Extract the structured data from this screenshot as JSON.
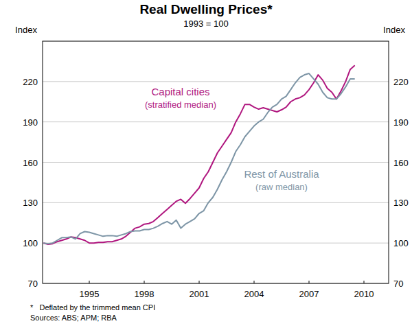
{
  "chart_data": {
    "type": "line",
    "title": "Real Dwelling Prices*",
    "subtitle": "1993 = 100",
    "ylabel": "Index",
    "notes": [
      "*   Deflated by the trimmed mean CPI",
      "Sources: ABS; APM; RBA"
    ],
    "x": [
      1993,
      1993.25,
      1993.5,
      1993.75,
      1994,
      1994.25,
      1994.5,
      1994.75,
      1995,
      1995.25,
      1995.5,
      1995.75,
      1996,
      1996.25,
      1996.5,
      1996.75,
      1997,
      1997.25,
      1997.5,
      1997.75,
      1998,
      1998.25,
      1998.5,
      1998.75,
      1999,
      1999.25,
      1999.5,
      1999.75,
      2000,
      2000.25,
      2000.5,
      2000.75,
      2001,
      2001.25,
      2001.5,
      2001.75,
      2002,
      2002.25,
      2002.5,
      2002.75,
      2003,
      2003.25,
      2003.5,
      2003.75,
      2004,
      2004.25,
      2004.5,
      2004.75,
      2005,
      2005.25,
      2005.5,
      2005.75,
      2006,
      2006.25,
      2006.5,
      2006.75,
      2007,
      2007.25,
      2007.5,
      2007.75,
      2008,
      2008.25,
      2008.5,
      2008.75,
      2009,
      2009.25,
      2009.5,
      2009.75,
      2010
    ],
    "series": [
      {
        "name": "Capital cities",
        "description": "(stratified median)",
        "color": "#b0177f",
        "values": [
          100,
          99,
          99.5,
          101,
          102,
          103,
          104.5,
          104,
          103,
          102,
          100,
          100,
          100.5,
          100.5,
          101,
          101,
          102,
          103,
          105,
          108,
          111,
          112,
          114,
          114.5,
          116,
          119,
          122,
          125,
          128,
          131,
          132.5,
          129.5,
          133,
          137,
          141,
          148,
          153,
          160,
          167,
          172,
          177,
          182,
          190,
          196,
          203,
          203,
          201,
          199.5,
          200.5,
          199.5,
          198.5,
          197.5,
          199,
          201,
          205,
          207,
          208,
          210,
          214,
          219,
          225,
          221,
          215,
          212,
          207,
          213,
          220,
          229,
          232
        ]
      },
      {
        "name": "Rest of Australia",
        "description": "(raw median)",
        "color": "#7d95a6",
        "values": [
          100,
          99.5,
          100,
          102,
          104,
          104,
          104.5,
          103,
          107,
          108.5,
          108,
          107,
          106,
          105,
          105.5,
          105.5,
          105,
          106,
          107,
          108.5,
          109,
          109,
          110,
          110,
          111,
          112.5,
          114.5,
          116,
          114,
          117,
          111,
          114,
          116,
          118,
          122,
          124,
          130,
          134,
          140,
          147,
          153,
          160,
          168,
          173,
          179,
          183,
          187,
          190,
          192,
          197,
          201,
          203,
          207,
          209,
          214,
          219,
          223,
          225,
          226,
          222,
          218,
          212,
          208,
          207,
          207,
          211,
          216,
          222,
          222
        ]
      }
    ],
    "xlim": [
      1992.95,
      2011.85
    ],
    "xticks": [
      {
        "value": 1995.5,
        "label": "1995"
      },
      {
        "value": 1998.5,
        "label": "1998"
      },
      {
        "value": 2001.5,
        "label": "2001"
      },
      {
        "value": 2004.5,
        "label": "2004"
      },
      {
        "value": 2007.5,
        "label": "2007"
      },
      {
        "value": 2010.5,
        "label": "2010"
      }
    ],
    "ylim": [
      70,
      250
    ],
    "yticks": [
      70,
      100,
      130,
      160,
      190,
      220
    ],
    "grid": true
  }
}
